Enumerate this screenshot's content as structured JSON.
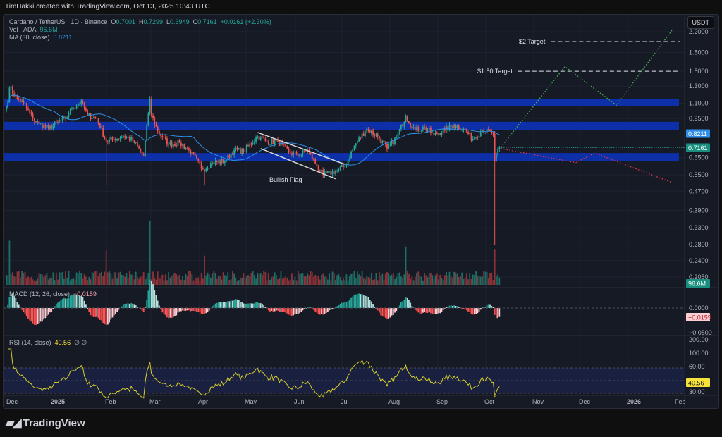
{
  "credit": "TimHakki created with TradingView.com, Oct 13, 2025 10:43 UTC",
  "legend": {
    "symbol": "Cardano / TetherUS · 1D · Binance",
    "o_label": "O",
    "o": "0.7001",
    "h_label": "H",
    "h": "0.7299",
    "l_label": "L",
    "l": "0.6949",
    "c_label": "C",
    "c": "0.7161",
    "change": "+0.0161 (+2.30%)",
    "vol_label": "Vol · ADA",
    "vol": "96.6M",
    "ma_label": "MA (30, close)",
    "ma": "0.8211",
    "macd_label": "MACD (12, 26, close)",
    "macd": "−0.0159",
    "rsi_label": "RSI (14, close)",
    "rsi": "40.56",
    "rsi_extra": "∅ ∅"
  },
  "currency_button": "USDT",
  "logo_text": "TradingView",
  "colors": {
    "up": "#26a69a",
    "down": "#ef5350",
    "ma": "#2f8fe8",
    "zone": "#0d2fa8",
    "rsi": "#d8cf2a",
    "bull_path": "#4caf50",
    "bear_path": "#e53950"
  },
  "chart_data": {
    "type": "candlestick",
    "title": "Cardano / TetherUS · 1D · Binance",
    "price_scale": "log",
    "price_ticks": [
      "2.2000",
      "1.8000",
      "1.5000",
      "1.3000",
      "1.1000",
      "0.9500",
      "0.6500",
      "0.5500",
      "0.4700",
      "0.3900",
      "0.3300",
      "0.2800",
      "0.2400",
      "0.2050"
    ],
    "price_badges": {
      "ma": "0.8211",
      "last": "0.7161",
      "volume": "96.6M"
    },
    "time_ticks": [
      "Dec",
      "2025",
      "Feb",
      "Mar",
      "Apr",
      "May",
      "Jun",
      "Jul",
      "Aug",
      "Sep",
      "Oct",
      "Nov",
      "Dec",
      "2026",
      "Feb"
    ],
    "price_path": [
      [
        "2024-12-01",
        1.05
      ],
      [
        "2024-12-03",
        1.28
      ],
      [
        "2024-12-08",
        1.15
      ],
      [
        "2024-12-12",
        1.1
      ],
      [
        "2024-12-18",
        0.95
      ],
      [
        "2024-12-22",
        0.9
      ],
      [
        "2024-12-28",
        0.86
      ],
      [
        "2025-01-03",
        0.92
      ],
      [
        "2025-01-08",
        0.95
      ],
      [
        "2025-01-12",
        1.05
      ],
      [
        "2025-01-18",
        1.12
      ],
      [
        "2025-01-22",
        0.98
      ],
      [
        "2025-01-28",
        0.95
      ],
      [
        "2025-02-03",
        0.76
      ],
      [
        "2025-02-08",
        0.78
      ],
      [
        "2025-02-14",
        0.8
      ],
      [
        "2025-02-20",
        0.77
      ],
      [
        "2025-02-27",
        0.66
      ],
      [
        "2025-03-03",
        1.15
      ],
      [
        "2025-03-04",
        0.98
      ],
      [
        "2025-03-08",
        0.84
      ],
      [
        "2025-03-15",
        0.74
      ],
      [
        "2025-03-22",
        0.75
      ],
      [
        "2025-03-28",
        0.7
      ],
      [
        "2025-04-06",
        0.58
      ],
      [
        "2025-04-12",
        0.62
      ],
      [
        "2025-04-20",
        0.63
      ],
      [
        "2025-04-26",
        0.7
      ],
      [
        "2025-05-02",
        0.69
      ],
      [
        "2025-05-11",
        0.8
      ],
      [
        "2025-05-17",
        0.76
      ],
      [
        "2025-05-24",
        0.76
      ],
      [
        "2025-06-01",
        0.68
      ],
      [
        "2025-06-07",
        0.67
      ],
      [
        "2025-06-12",
        0.7
      ],
      [
        "2025-06-18",
        0.6
      ],
      [
        "2025-06-22",
        0.55
      ],
      [
        "2025-06-30",
        0.57
      ],
      [
        "2025-07-06",
        0.6
      ],
      [
        "2025-07-12",
        0.73
      ],
      [
        "2025-07-20",
        0.86
      ],
      [
        "2025-07-27",
        0.8
      ],
      [
        "2025-08-02",
        0.71
      ],
      [
        "2025-08-08",
        0.79
      ],
      [
        "2025-08-14",
        0.97
      ],
      [
        "2025-08-20",
        0.85
      ],
      [
        "2025-08-26",
        0.87
      ],
      [
        "2025-09-01",
        0.81
      ],
      [
        "2025-09-08",
        0.85
      ],
      [
        "2025-09-14",
        0.89
      ],
      [
        "2025-09-20",
        0.86
      ],
      [
        "2025-09-26",
        0.78
      ],
      [
        "2025-10-02",
        0.85
      ],
      [
        "2025-10-09",
        0.82
      ],
      [
        "2025-10-10",
        0.63
      ],
      [
        "2025-10-13",
        0.7161
      ]
    ],
    "notable_wicks": [
      [
        "2025-02-03",
        0.5
      ],
      [
        "2025-03-03",
        1.18
      ],
      [
        "2025-04-07",
        0.5
      ],
      [
        "2025-10-10",
        0.28
      ]
    ],
    "volume_spikes_m": [
      [
        "2024-12-03",
        540
      ],
      [
        "2025-02-03",
        420
      ],
      [
        "2025-03-03",
        780
      ],
      [
        "2025-04-07",
        360
      ],
      [
        "2025-08-14",
        470
      ],
      [
        "2025-10-10",
        440
      ],
      [
        "2025-10-13",
        96.6
      ]
    ],
    "zones": [
      [
        1.07,
        1.15
      ],
      [
        0.85,
        0.92
      ],
      [
        0.63,
        0.68
      ]
    ],
    "targets": [
      {
        "label": "$2 Target",
        "price": 2.0,
        "from": "2025-11-15"
      },
      {
        "label": "$1.50 Target",
        "price": 1.5,
        "from": "2025-10-25"
      }
    ],
    "bull_path": [
      [
        "2025-10-14",
        0.72
      ],
      [
        "2025-11-24",
        1.57
      ],
      [
        "2025-12-27",
        1.08
      ],
      [
        "2026-02-01",
        2.25
      ]
    ],
    "bear_path": [
      [
        "2025-10-14",
        0.71
      ],
      [
        "2025-12-01",
        0.62
      ],
      [
        "2025-12-13",
        0.68
      ],
      [
        "2026-02-01",
        0.51
      ]
    ],
    "flag_label": "Bullish Flag",
    "flag_lines": [
      [
        [
          "2025-05-11",
          0.83
        ],
        [
          "2025-07-06",
          0.61
        ]
      ],
      [
        [
          "2025-05-13",
          0.71
        ],
        [
          "2025-06-30",
          0.53
        ]
      ]
    ],
    "macd_ticks": [
      "0.0000",
      "−0.0500"
    ],
    "macd_badge": "−0.0159",
    "rsi_ticks": [
      "200.00",
      "100.00",
      "60.00",
      "30.00"
    ],
    "rsi_badge": "40.56"
  }
}
